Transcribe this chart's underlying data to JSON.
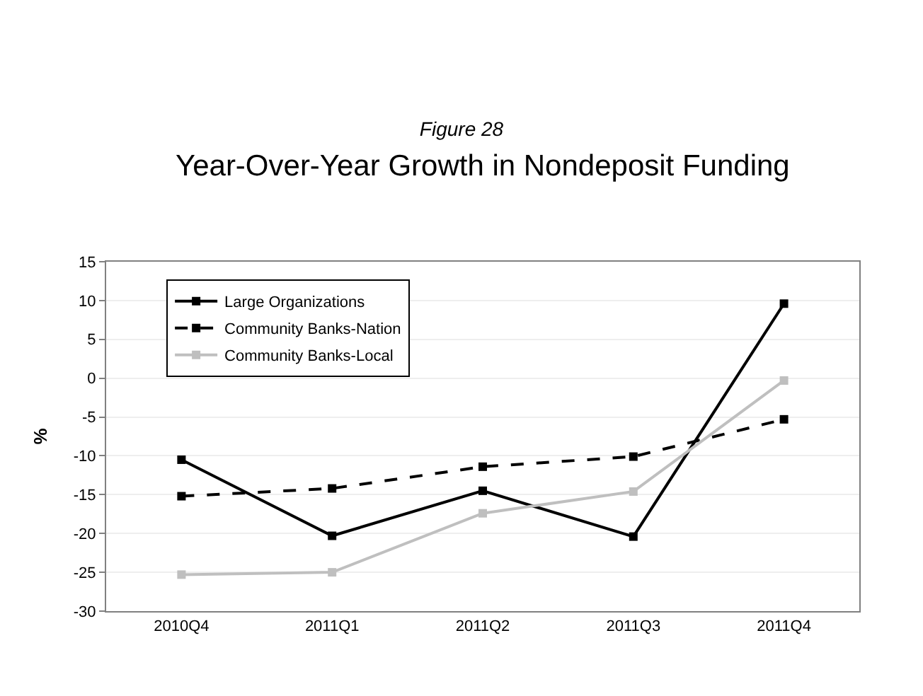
{
  "chart_data": {
    "type": "line",
    "title": "Figure 28",
    "subtitle": "Year-Over-Year Growth in Nondeposit Funding",
    "ylabel": "%",
    "categories": [
      "2010Q4",
      "2011Q1",
      "2011Q2",
      "2011Q3",
      "2011Q4"
    ],
    "series": [
      {
        "name": "Large Organizations",
        "color": "#000000",
        "values": [
          -10.5,
          -20.3,
          -14.5,
          -20.4,
          9.6
        ],
        "line_style": "solid"
      },
      {
        "name": "Community Banks-Nation",
        "color": "#000000",
        "values": [
          -15.2,
          -14.2,
          -11.4,
          -10.1,
          -5.3
        ],
        "line_style": "dashed"
      },
      {
        "name": "Community Banks-Local",
        "color": "#bfbfbf",
        "values": [
          -25.3,
          -25.0,
          -17.4,
          -14.6,
          -0.3
        ],
        "line_style": "solid"
      }
    ],
    "ylim": [
      -30,
      15
    ],
    "yticks": [
      -30,
      -25,
      -20,
      -15,
      -10,
      -5,
      0,
      5,
      10,
      15
    ],
    "grid": "y",
    "legend": "top left",
    "marker": "square"
  }
}
